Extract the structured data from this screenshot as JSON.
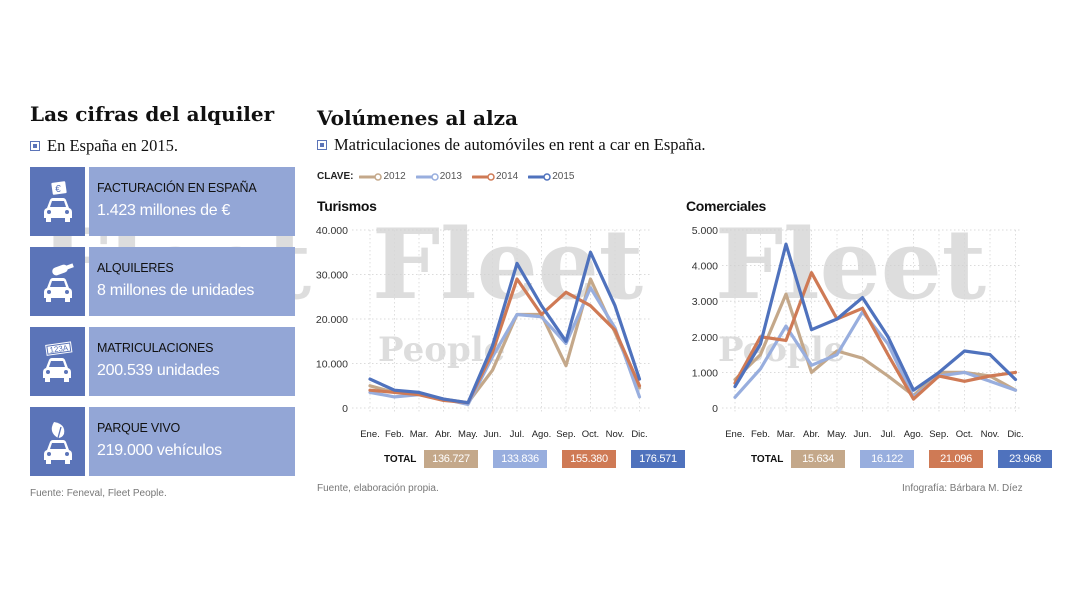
{
  "left_panel": {
    "title": "Las cifras del alquiler",
    "subtitle": "En España en 2015.",
    "cards": [
      {
        "label": "FACTURACIÓN EN ESPAÑA",
        "value": "1.423 millones de €",
        "icon": "car-euro-icon",
        "badge": "€"
      },
      {
        "label": "ALQUILERES",
        "value": "8 millones de unidades",
        "icon": "car-key-icon",
        "badge": ""
      },
      {
        "label": "MATRICULACIONES",
        "value": "200.539 unidades",
        "icon": "car-plate-icon",
        "badge": "123A"
      },
      {
        "label": "PARQUE VIVO",
        "value": "219.000 vehículos",
        "icon": "car-leaf-icon",
        "badge": ""
      }
    ],
    "source": "Fuente: Feneval, Fleet People."
  },
  "right_panel": {
    "title": "Volúmenes al alza",
    "subtitle": "Matriculaciones de automóviles en rent a car en España.",
    "legend_key": "CLAVE:",
    "source": "Fuente, elaboración propia.",
    "credit": "Infografía: Bárbara M. Díez",
    "totals_label": "TOTAL"
  },
  "watermark": {
    "brand": "Fleet",
    "sub": "People"
  },
  "colors": {
    "2012": "#c4a88a",
    "2013": "#98aede",
    "2014": "#cf7a55",
    "2015": "#4f72bd",
    "card_dark": "#5b74b8",
    "card_light": "#93a6d6"
  },
  "chart_data": [
    {
      "type": "line",
      "title": "Turismos",
      "categories": [
        "Ene.",
        "Feb.",
        "Mar.",
        "Abr.",
        "May.",
        "Jun.",
        "Jul.",
        "Ago.",
        "Sep.",
        "Oct.",
        "Nov.",
        "Dic."
      ],
      "ylim": [
        0,
        40000
      ],
      "yticks": [
        0,
        10000,
        20000,
        30000,
        40000
      ],
      "ytick_labels": [
        "0",
        "10.000",
        "20.000",
        "30.000",
        "40.000"
      ],
      "grid": true,
      "legend": "top-left",
      "series": [
        {
          "name": "2012",
          "values": [
            5000,
            3500,
            3300,
            2000,
            1200,
            8500,
            21000,
            21000,
            9500,
            29000,
            17000,
            4500
          ]
        },
        {
          "name": "2013",
          "values": [
            3500,
            2500,
            3000,
            2000,
            800,
            11500,
            21000,
            20500,
            14500,
            27000,
            18000,
            2500
          ]
        },
        {
          "name": "2014",
          "values": [
            4000,
            3500,
            3000,
            1700,
            1200,
            12500,
            29000,
            21000,
            26000,
            23000,
            17500,
            5000
          ]
        },
        {
          "name": "2015",
          "values": [
            6500,
            4000,
            3500,
            2000,
            1200,
            14000,
            32500,
            23000,
            15000,
            35000,
            23000,
            6500
          ]
        }
      ],
      "totals": [
        "136.727",
        "133.836",
        "155.380",
        "176.571"
      ]
    },
    {
      "type": "line",
      "title": "Comerciales",
      "categories": [
        "Ene.",
        "Feb.",
        "Mar.",
        "Abr.",
        "May.",
        "Jun.",
        "Jul.",
        "Ago.",
        "Sep.",
        "Oct.",
        "Nov.",
        "Dic."
      ],
      "ylim": [
        0,
        5000
      ],
      "yticks": [
        0,
        1000,
        2000,
        3000,
        4000,
        5000
      ],
      "ytick_labels": [
        "0",
        "1.000",
        "2.000",
        "3.000",
        "4.000",
        "5.000"
      ],
      "grid": true,
      "legend": "top-left",
      "series": [
        {
          "name": "2012",
          "values": [
            800,
            1500,
            3200,
            1000,
            1600,
            1400,
            900,
            350,
            1000,
            1000,
            900,
            500
          ]
        },
        {
          "name": "2013",
          "values": [
            300,
            1100,
            2300,
            1200,
            1500,
            2700,
            1800,
            300,
            900,
            1000,
            750,
            500
          ]
        },
        {
          "name": "2014",
          "values": [
            700,
            2000,
            1900,
            3800,
            2500,
            2800,
            1500,
            250,
            900,
            750,
            900,
            1000
          ]
        },
        {
          "name": "2015",
          "values": [
            600,
            1800,
            4600,
            2200,
            2500,
            3100,
            2000,
            500,
            1000,
            1600,
            1500,
            800
          ]
        }
      ],
      "totals": [
        "15.634",
        "16.122",
        "21.096",
        "23.968"
      ]
    }
  ]
}
